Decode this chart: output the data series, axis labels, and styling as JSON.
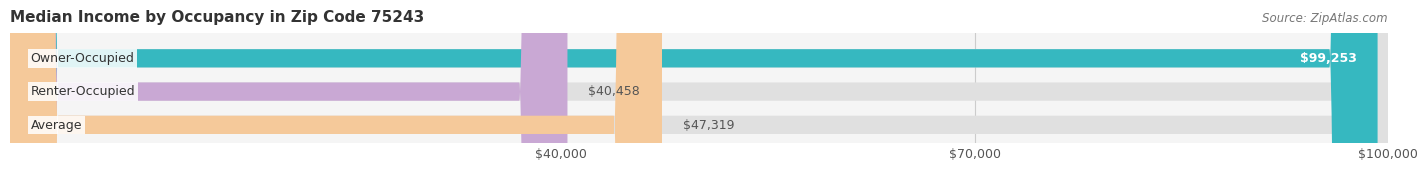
{
  "title": "Median Income by Occupancy in Zip Code 75243",
  "source": "Source: ZipAtlas.com",
  "categories": [
    "Owner-Occupied",
    "Renter-Occupied",
    "Average"
  ],
  "values": [
    99253,
    40458,
    47319
  ],
  "bar_colors": [
    "#36B8C0",
    "#C9A8D4",
    "#F5C99A"
  ],
  "value_labels": [
    "$99,253",
    "$40,458",
    "$47,319"
  ],
  "xlim": [
    0,
    100000
  ],
  "xticks": [
    0,
    40000,
    70000,
    100000
  ],
  "xtick_labels": [
    "",
    "$40,000",
    "$70,000",
    "$100,000"
  ],
  "bar_height": 0.55,
  "fig_bg_color": "#FFFFFF",
  "plot_bg_color": "#F5F5F5",
  "title_fontsize": 11,
  "label_fontsize": 9,
  "tick_fontsize": 9,
  "source_fontsize": 8.5
}
